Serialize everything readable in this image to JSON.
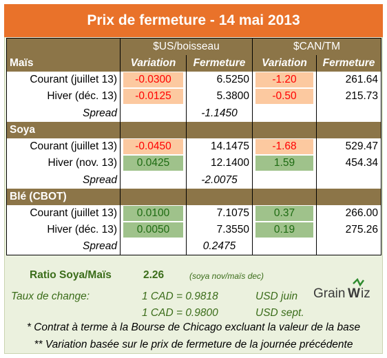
{
  "title": "Prix de fermeture - 14 mai 2013",
  "header": {
    "us_unit": "$US/boisseau",
    "can_unit": "$CAN/TM",
    "variation": "Variation",
    "fermeture": "Fermeture"
  },
  "sections": [
    {
      "name": "Maïs",
      "rows": [
        {
          "label": "Courant (juillet 13)",
          "us_var": "-0.0300",
          "us_close": "6.5250",
          "can_var": "-1.20",
          "can_close": "261.64"
        },
        {
          "label": "Hiver (déc. 13)",
          "us_var": "-0.0125",
          "us_close": "5.3800",
          "can_var": "-0.50",
          "can_close": "215.73"
        }
      ],
      "spread_label": "Spread",
      "spread_value": "-1.1450"
    },
    {
      "name": "Soya",
      "rows": [
        {
          "label": "Courant (juillet 13)",
          "us_var": "-0.0450",
          "us_close": "14.1475",
          "can_var": "-1.68",
          "can_close": "529.47"
        },
        {
          "label": "Hiver (nov. 13)",
          "us_var": "0.0425",
          "us_close": "12.1400",
          "can_var": "1.59",
          "can_close": "454.34"
        }
      ],
      "spread_label": "Spread",
      "spread_value": "-2.0075"
    },
    {
      "name": "Blé (CBOT)",
      "rows": [
        {
          "label": "Courant (juillet 13)",
          "us_var": "0.0100",
          "us_close": "7.1075",
          "can_var": "0.37",
          "can_close": "266.00"
        },
        {
          "label": "Hiver (déc. 13)",
          "us_var": "0.0050",
          "us_close": "7.3550",
          "can_var": "0.19",
          "can_close": "275.26"
        }
      ],
      "spread_label": "Spread",
      "spread_value": "0.2475"
    }
  ],
  "ratio": {
    "label": "Ratio Soya/Maïs",
    "value": "2.26",
    "note": "(soya nov/maïs dec)"
  },
  "exchange": {
    "label": "Taux de change:",
    "rate1": "1 CAD =  0.9818",
    "unit1": "USD juin",
    "rate2": "1 CAD =  0.9800",
    "unit2": "USD sept."
  },
  "logo_text": "GrainWiz",
  "footnotes": {
    "f1": "* Contrat à terme à la Bourse de Chicago excluant la valeur de la base",
    "f2": "** Variation basée sur le prix de fermeture de la journée précédente"
  },
  "colors": {
    "title_bg": "#e9722a",
    "band_bg": "#8c7548",
    "neg_bg": "#fcc9a0",
    "neg_text": "#ff0000",
    "pos_bg": "#9fc28b",
    "pos_text": "#1e6b12",
    "panel_bg": "#ebf1de"
  }
}
